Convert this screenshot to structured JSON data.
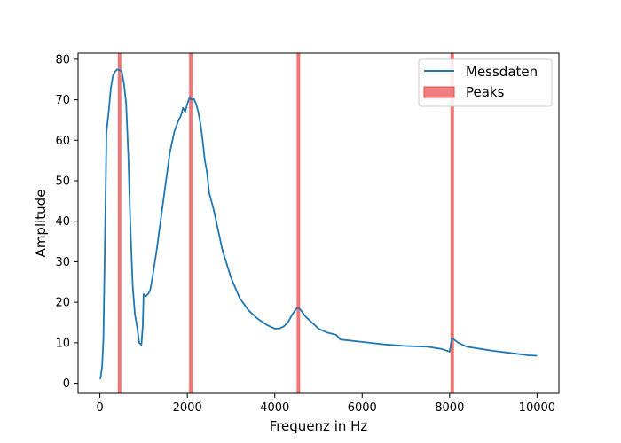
{
  "chart_data": {
    "type": "line",
    "xlabel": "Frequenz in Hz",
    "ylabel": "Amplitude",
    "xlim": [
      -500,
      10500
    ],
    "ylim": [
      -2.5,
      81.5
    ],
    "x_ticks": [
      0,
      2000,
      4000,
      6000,
      8000,
      10000
    ],
    "y_ticks": [
      0,
      10,
      20,
      30,
      40,
      50,
      60,
      70,
      80
    ],
    "grid": false,
    "legend_position": "top-right",
    "colors": {
      "line": "#1f77b4",
      "peak": "#f07070"
    },
    "series": [
      {
        "name": "Messdaten",
        "x": [
          10,
          50,
          80,
          100,
          130,
          150,
          200,
          250,
          300,
          350,
          400,
          450,
          500,
          550,
          600,
          650,
          700,
          750,
          800,
          850,
          900,
          950,
          980,
          1000,
          1050,
          1100,
          1150,
          1200,
          1300,
          1400,
          1500,
          1600,
          1700,
          1800,
          1850,
          1900,
          1950,
          2000,
          2050,
          2100,
          2150,
          2200,
          2250,
          2300,
          2350,
          2400,
          2450,
          2500,
          2550,
          2600,
          2700,
          2800,
          3000,
          3200,
          3400,
          3600,
          3800,
          4000,
          4100,
          4200,
          4300,
          4400,
          4500,
          4550,
          4600,
          4700,
          4800,
          4900,
          5000,
          5200,
          5400,
          5500,
          6000,
          6500,
          7000,
          7500,
          7800,
          7950,
          8000,
          8050,
          8100,
          8200,
          8400,
          8700,
          9000,
          9300,
          9600,
          9800,
          10000
        ],
        "y": [
          1,
          4,
          11,
          25,
          45,
          62,
          67,
          73,
          76,
          77,
          77.5,
          77.3,
          77,
          74,
          69,
          56,
          38,
          24,
          17,
          14,
          10,
          9.5,
          14,
          22,
          21.5,
          22,
          23,
          26,
          33,
          41,
          49,
          57,
          62,
          65,
          66,
          68,
          67,
          69,
          70.5,
          70,
          70.2,
          69,
          67,
          64,
          60,
          55,
          52,
          47,
          45,
          43,
          38,
          33,
          26,
          21,
          18,
          16,
          14.5,
          13.5,
          13.5,
          14,
          15,
          17,
          18.5,
          18.6,
          18,
          16.5,
          15.5,
          14.5,
          13.5,
          12.5,
          12,
          10.8,
          10.2,
          9.6,
          9.2,
          9,
          8.5,
          8,
          7.8,
          11,
          10.8,
          10,
          9,
          8.5,
          8,
          7.6,
          7.2,
          6.9,
          6.8
        ]
      }
    ],
    "peaks": {
      "name": "Peaks",
      "x": [
        450,
        2080,
        4540,
        8060
      ]
    }
  }
}
